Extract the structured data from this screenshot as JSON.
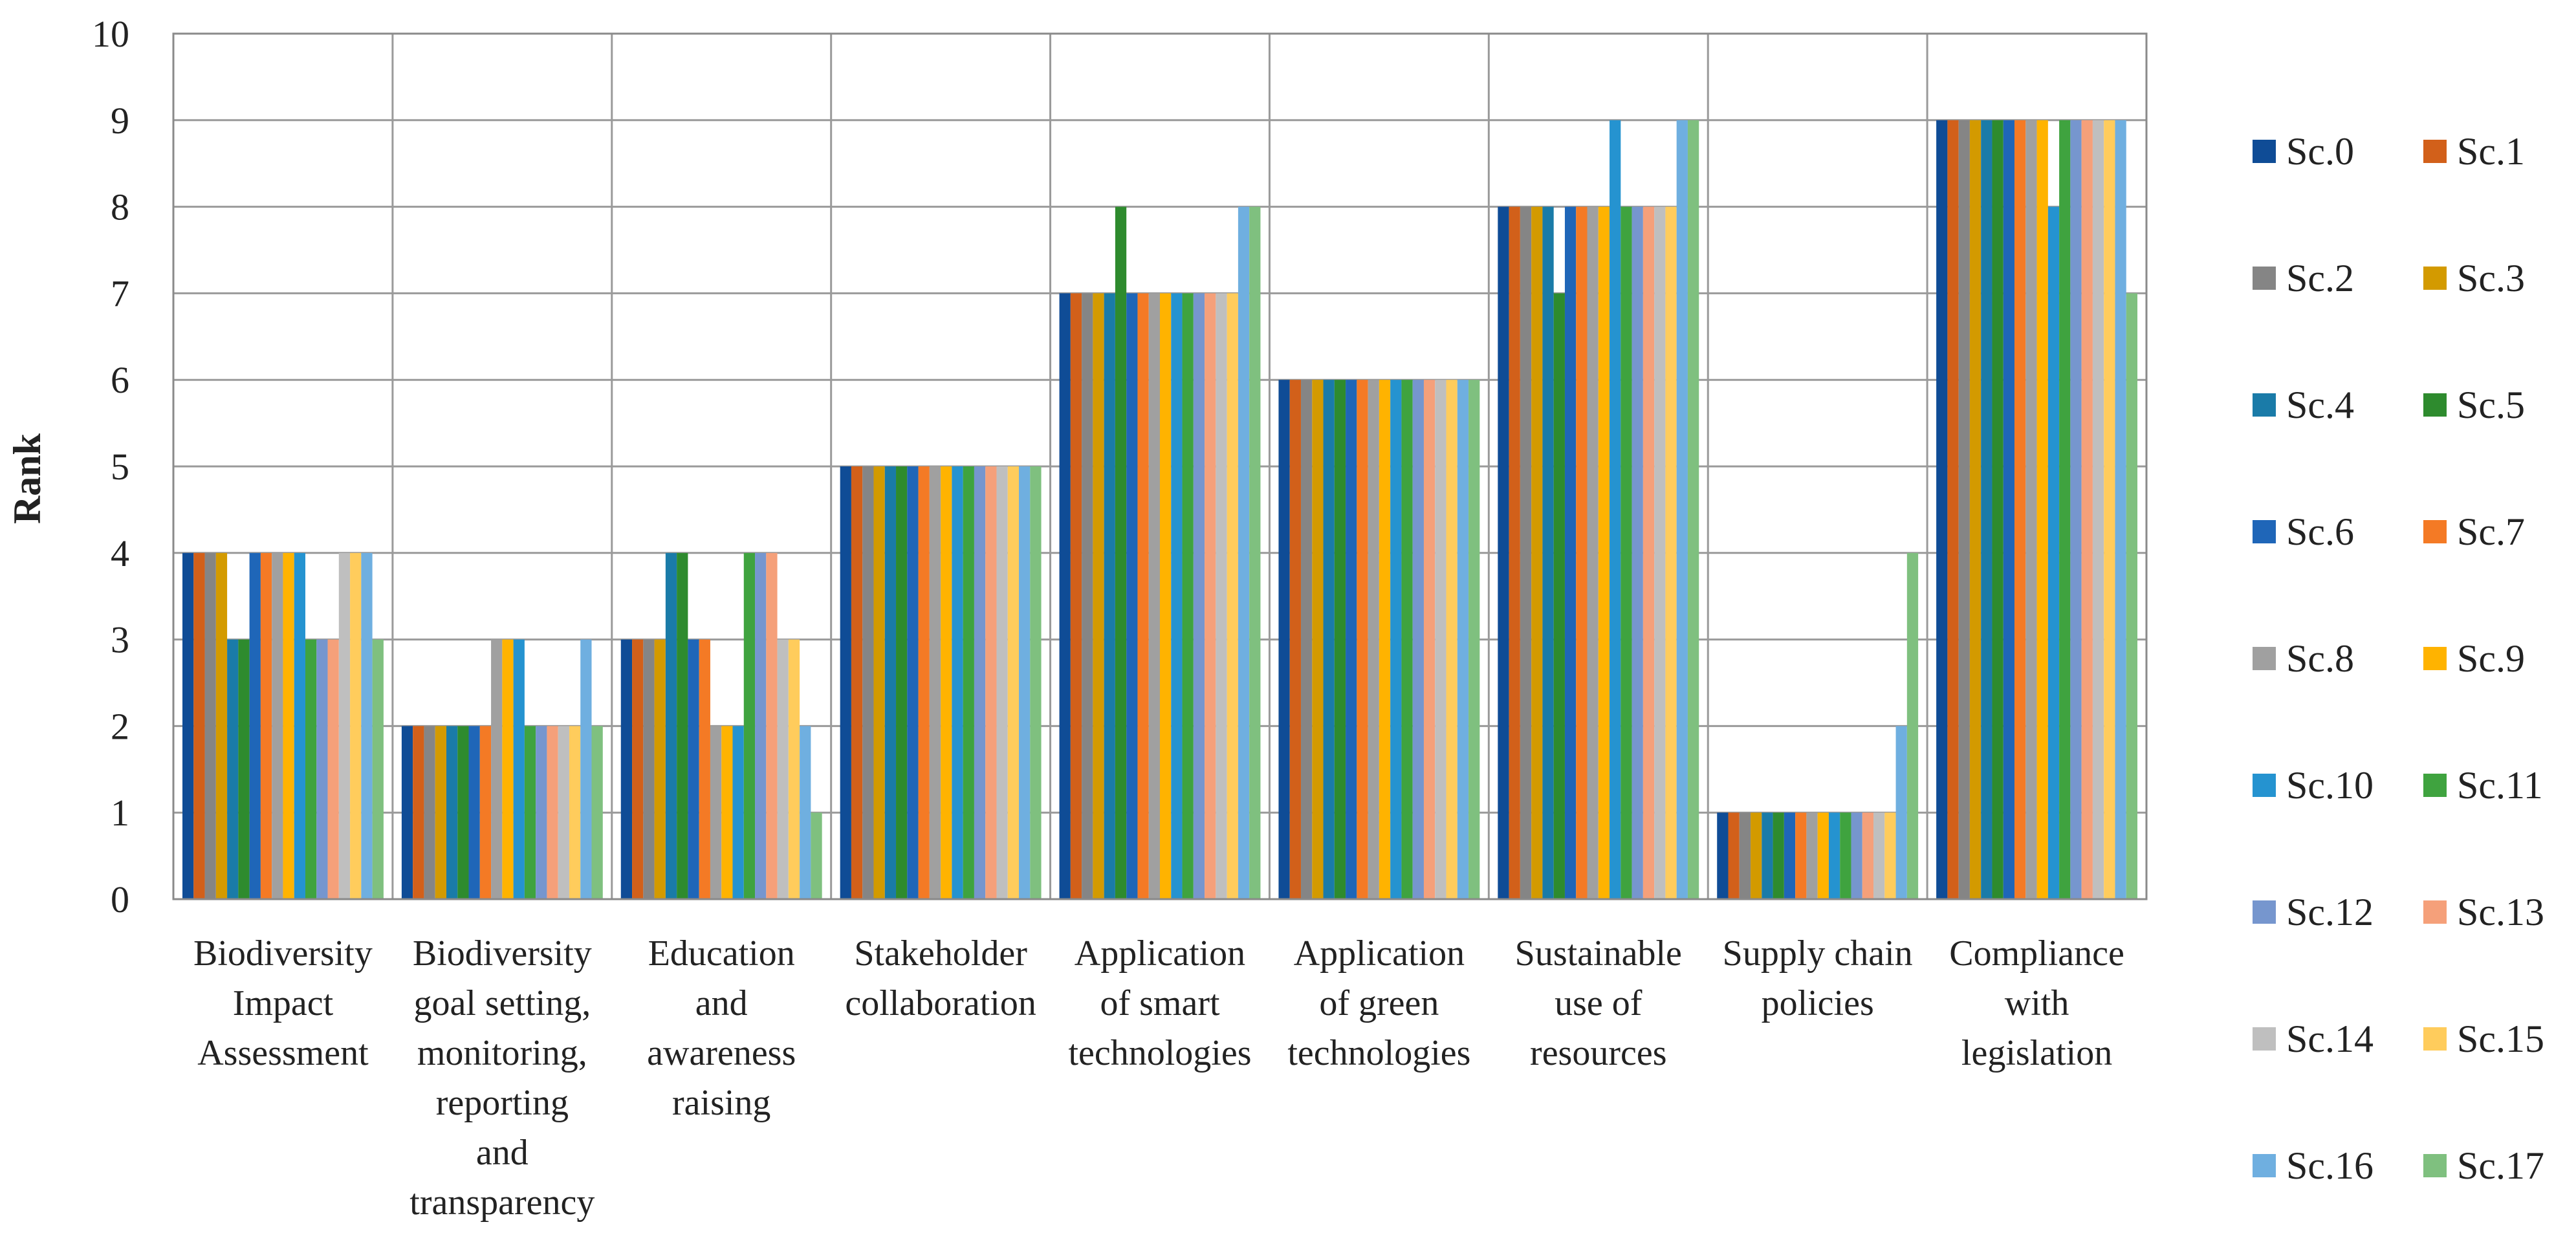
{
  "chart_data": {
    "type": "bar",
    "title": "",
    "xlabel": "",
    "ylabel": "Rank",
    "ylim": [
      0,
      10
    ],
    "yticks": [
      0,
      1,
      2,
      3,
      4,
      5,
      6,
      7,
      8,
      9,
      10
    ],
    "grid": true,
    "legend_position": "right",
    "categories": [
      [
        "Biodiversity",
        "Impact",
        "Assessment"
      ],
      [
        "Biodiversity",
        "goal setting,",
        "monitoring,",
        "reporting",
        "and",
        "transparency"
      ],
      [
        "Education",
        "and",
        "awareness",
        "raising"
      ],
      [
        "Stakeholder",
        "collaboration"
      ],
      [
        "Application",
        "of smart",
        "technologies"
      ],
      [
        "Application",
        "of green",
        "technologies"
      ],
      [
        "Sustainable",
        "use of",
        "resources"
      ],
      [
        "Supply chain",
        "policies"
      ],
      [
        "Compliance",
        "with",
        "legislation"
      ]
    ],
    "series": [
      {
        "name": "Sc.0",
        "color": "#0F4C96",
        "values": [
          4,
          2,
          3,
          5,
          7,
          6,
          8,
          1,
          9
        ]
      },
      {
        "name": "Sc.1",
        "color": "#D2601A",
        "values": [
          4,
          2,
          3,
          5,
          7,
          6,
          8,
          1,
          9
        ]
      },
      {
        "name": "Sc.2",
        "color": "#858585",
        "values": [
          4,
          2,
          3,
          5,
          7,
          6,
          8,
          1,
          9
        ]
      },
      {
        "name": "Sc.3",
        "color": "#D39A00",
        "values": [
          4,
          2,
          3,
          5,
          7,
          6,
          8,
          1,
          9
        ]
      },
      {
        "name": "Sc.4",
        "color": "#1A7BA8",
        "values": [
          3,
          2,
          4,
          5,
          7,
          6,
          8,
          1,
          9
        ]
      },
      {
        "name": "Sc.5",
        "color": "#2E8B2E",
        "values": [
          3,
          2,
          4,
          5,
          8,
          6,
          7,
          1,
          9
        ]
      },
      {
        "name": "Sc.6",
        "color": "#1F66B8",
        "values": [
          4,
          2,
          3,
          5,
          7,
          6,
          8,
          1,
          9
        ]
      },
      {
        "name": "Sc.7",
        "color": "#F47A25",
        "values": [
          4,
          2,
          3,
          5,
          7,
          6,
          8,
          1,
          9
        ]
      },
      {
        "name": "Sc.8",
        "color": "#A0A0A0",
        "values": [
          4,
          3,
          2,
          5,
          7,
          6,
          8,
          1,
          9
        ]
      },
      {
        "name": "Sc.9",
        "color": "#FFB300",
        "values": [
          4,
          3,
          2,
          5,
          7,
          6,
          8,
          1,
          9
        ]
      },
      {
        "name": "Sc.10",
        "color": "#2593D0",
        "values": [
          4,
          3,
          2,
          5,
          7,
          6,
          9,
          1,
          8
        ]
      },
      {
        "name": "Sc.11",
        "color": "#3FA33F",
        "values": [
          3,
          2,
          4,
          5,
          7,
          6,
          8,
          1,
          9
        ]
      },
      {
        "name": "Sc.12",
        "color": "#7696CE",
        "values": [
          3,
          2,
          4,
          5,
          7,
          6,
          8,
          1,
          9
        ]
      },
      {
        "name": "Sc.13",
        "color": "#F5A07A",
        "values": [
          3,
          2,
          4,
          5,
          7,
          6,
          8,
          1,
          9
        ]
      },
      {
        "name": "Sc.14",
        "color": "#BFBFBF",
        "values": [
          4,
          2,
          3,
          5,
          7,
          6,
          8,
          1,
          9
        ]
      },
      {
        "name": "Sc.15",
        "color": "#FFCC5C",
        "values": [
          4,
          2,
          3,
          5,
          7,
          6,
          8,
          1,
          9
        ]
      },
      {
        "name": "Sc.16",
        "color": "#6FAFE0",
        "values": [
          4,
          3,
          2,
          5,
          8,
          6,
          9,
          2,
          9
        ]
      },
      {
        "name": "Sc.17",
        "color": "#7FC07F",
        "values": [
          3,
          2,
          1,
          5,
          8,
          6,
          9,
          4,
          7
        ]
      }
    ]
  }
}
